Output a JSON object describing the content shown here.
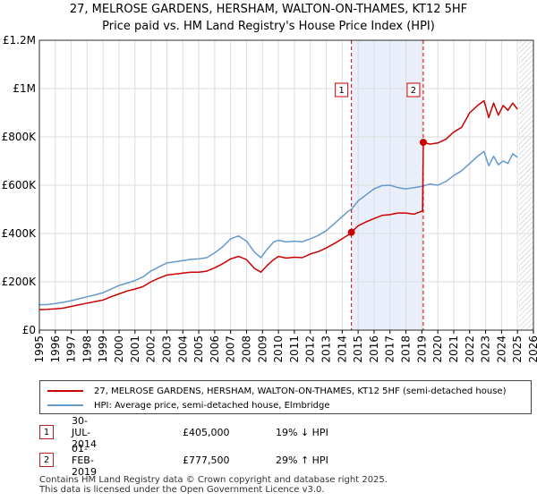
{
  "chart_data": {
    "type": "line",
    "title": "27, MELROSE GARDENS, HERSHAM, WALTON-ON-THAMES, KT12 5HF",
    "subtitle": "Price paid vs. HM Land Registry's House Price Index (HPI)",
    "xlim": [
      1995,
      2026
    ],
    "ylim": [
      0,
      1200000
    ],
    "y_ticks": [
      {
        "value": 0,
        "label": "£0"
      },
      {
        "value": 200000,
        "label": "£200K"
      },
      {
        "value": 400000,
        "label": "£400K"
      },
      {
        "value": 600000,
        "label": "£600K"
      },
      {
        "value": 800000,
        "label": "£800K"
      },
      {
        "value": 1000000,
        "label": "£1M"
      },
      {
        "value": 1200000,
        "label": "£1.2M"
      }
    ],
    "x_ticks": [
      "1995",
      "1996",
      "1997",
      "1998",
      "1999",
      "2000",
      "2001",
      "2002",
      "2003",
      "2004",
      "2005",
      "2006",
      "2007",
      "2008",
      "2009",
      "2010",
      "2011",
      "2012",
      "2013",
      "2014",
      "2015",
      "2016",
      "2017",
      "2018",
      "2019",
      "2020",
      "2021",
      "2022",
      "2023",
      "2024",
      "2025",
      "2026"
    ],
    "grid": true,
    "shaded_period": [
      2014.58,
      2019.09
    ],
    "future_hatch_from": 2025.1,
    "series": [
      {
        "name": "27, MELROSE GARDENS, HERSHAM, WALTON-ON-THAMES, KT12 5HF (semi-detached house)",
        "color": "#cc0000",
        "x": [
          1995.0,
          1995.5,
          1996.0,
          1996.5,
          1997.0,
          1997.5,
          1998.0,
          1998.5,
          1999.0,
          1999.5,
          2000.0,
          2000.5,
          2001.0,
          2001.5,
          2002.0,
          2002.5,
          2003.0,
          2003.5,
          2004.0,
          2004.5,
          2005.0,
          2005.5,
          2006.0,
          2006.5,
          2007.0,
          2007.5,
          2008.0,
          2008.5,
          2008.9,
          2009.3,
          2009.7,
          2010.0,
          2010.5,
          2011.0,
          2011.5,
          2012.0,
          2012.5,
          2013.0,
          2013.5,
          2014.0,
          2014.4,
          2014.58,
          2015.0,
          2015.5,
          2016.0,
          2016.5,
          2017.0,
          2017.5,
          2018.0,
          2018.5,
          2018.9,
          2019.05,
          2019.09,
          2019.5,
          2020.0,
          2020.5,
          2021.0,
          2021.5,
          2022.0,
          2022.5,
          2022.9,
          2023.2,
          2023.5,
          2023.8,
          2024.1,
          2024.4,
          2024.7,
          2025.0
        ],
        "values": [
          85000,
          86000,
          88000,
          91000,
          98000,
          105000,
          112000,
          118000,
          125000,
          138000,
          150000,
          162000,
          170000,
          180000,
          200000,
          215000,
          228000,
          232000,
          236000,
          240000,
          240000,
          244000,
          258000,
          275000,
          295000,
          305000,
          292000,
          255000,
          240000,
          268000,
          292000,
          305000,
          298000,
          302000,
          300000,
          315000,
          325000,
          340000,
          358000,
          378000,
          395000,
          405000,
          432000,
          448000,
          462000,
          475000,
          478000,
          485000,
          485000,
          480000,
          490000,
          493000,
          777500,
          770000,
          775000,
          790000,
          820000,
          840000,
          900000,
          930000,
          950000,
          880000,
          940000,
          890000,
          930000,
          910000,
          940000,
          915000
        ]
      },
      {
        "name": "HPI: Average price, semi-detached house, Elmbridge",
        "color": "#6699cc",
        "x": [
          1995.0,
          1995.5,
          1996.0,
          1996.5,
          1997.0,
          1997.5,
          1998.0,
          1998.5,
          1999.0,
          1999.5,
          2000.0,
          2000.5,
          2001.0,
          2001.5,
          2002.0,
          2002.5,
          2003.0,
          2003.5,
          2004.0,
          2004.5,
          2005.0,
          2005.5,
          2006.0,
          2006.5,
          2007.0,
          2007.5,
          2008.0,
          2008.5,
          2008.9,
          2009.3,
          2009.7,
          2010.0,
          2010.5,
          2011.0,
          2011.5,
          2012.0,
          2012.5,
          2013.0,
          2013.5,
          2014.0,
          2014.4,
          2014.58,
          2015.0,
          2015.5,
          2016.0,
          2016.5,
          2017.0,
          2017.5,
          2018.0,
          2018.5,
          2019.0,
          2019.5,
          2020.0,
          2020.5,
          2021.0,
          2021.5,
          2022.0,
          2022.5,
          2022.9,
          2023.2,
          2023.5,
          2023.8,
          2024.1,
          2024.4,
          2024.7,
          2025.0
        ],
        "values": [
          105000,
          106000,
          110000,
          115000,
          122000,
          130000,
          138000,
          146000,
          155000,
          170000,
          185000,
          195000,
          205000,
          220000,
          245000,
          262000,
          278000,
          283000,
          288000,
          293000,
          295000,
          300000,
          320000,
          345000,
          378000,
          390000,
          368000,
          322000,
          300000,
          335000,
          365000,
          372000,
          365000,
          368000,
          366000,
          378000,
          392000,
          412000,
          440000,
          470000,
          493000,
          500000,
          535000,
          560000,
          585000,
          598000,
          600000,
          590000,
          585000,
          590000,
          595000,
          605000,
          600000,
          615000,
          640000,
          660000,
          690000,
          720000,
          740000,
          680000,
          720000,
          685000,
          700000,
          690000,
          730000,
          715000
        ]
      }
    ],
    "annotations": [
      {
        "label": "1",
        "x": 2014.58,
        "y": 405000
      },
      {
        "label": "2",
        "x": 2019.09,
        "y": 777500
      }
    ]
  },
  "transactions": [
    {
      "num": "1",
      "date": "30-JUL-2014",
      "price": "£405,000",
      "hpi": "19% ↓ HPI"
    },
    {
      "num": "2",
      "date": "01-FEB-2019",
      "price": "£777,500",
      "hpi": "29% ↑ HPI"
    }
  ],
  "footer": {
    "line1": "Contains HM Land Registry data © Crown copyright and database right 2025.",
    "line2": "This data is licensed under the Open Government Licence v3.0."
  },
  "colors": {
    "property": "#cc0000",
    "hpi": "#6699cc",
    "shade": "#e8eefa",
    "grid": "#dddddd"
  }
}
